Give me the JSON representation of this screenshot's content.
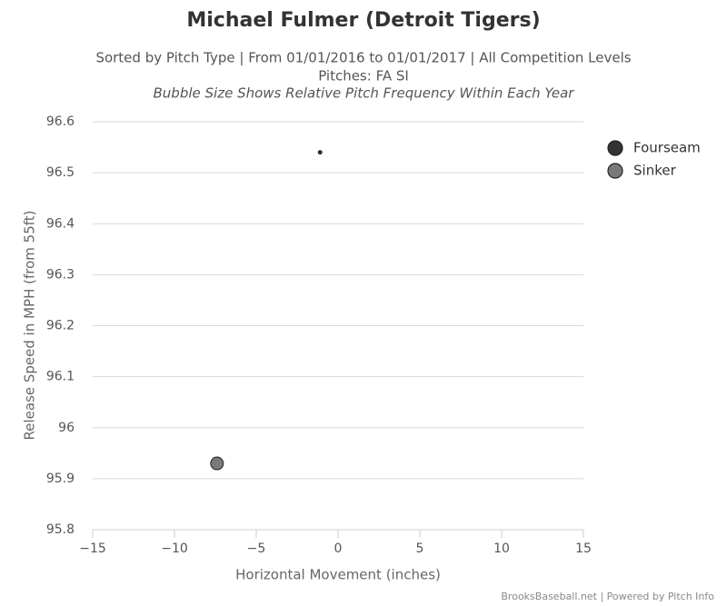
{
  "chart_data": {
    "type": "bubble",
    "title": "Michael Fulmer (Detroit Tigers)",
    "subtitle": "Sorted by Pitch Type | From 01/01/2016 to 01/01/2017 | All Competition Levels",
    "subtitle2": "Pitches: FA SI",
    "subtitle3": "Bubble Size Shows Relative Pitch Frequency Within Each Year",
    "xlabel": "Horizontal Movement (inches)",
    "ylabel": "Release Speed in MPH (from 55ft)",
    "credits": "BrooksBaseball.net | Powered by Pitch Info",
    "xlim": [
      -15,
      15
    ],
    "xticks": [
      {
        "value": -15,
        "label": "−15"
      },
      {
        "value": -10,
        "label": "−10"
      },
      {
        "value": -5,
        "label": "−5"
      },
      0,
      5,
      10,
      15
    ],
    "ylim": [
      95.8,
      96.6
    ],
    "yticks": [
      95.8,
      95.9,
      96,
      96.1,
      96.2,
      96.3,
      96.4,
      96.5,
      96.6
    ],
    "grid": true,
    "legend": "right",
    "series": [
      {
        "name": "Fourseam",
        "color": "#333333",
        "x": [
          -1.1
        ],
        "values": [
          96.54
        ],
        "sizes": [
          0.08
        ]
      },
      {
        "name": "Sinker",
        "color": "#7a7a7a",
        "x": [
          -7.4
        ],
        "values": [
          95.93
        ],
        "sizes": [
          1
        ]
      }
    ]
  }
}
